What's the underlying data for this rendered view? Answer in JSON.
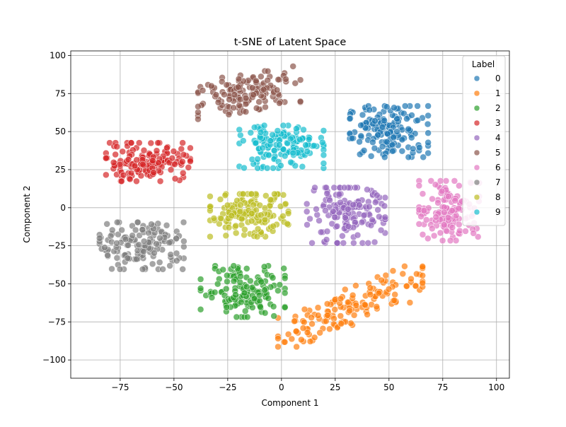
{
  "chart_data": {
    "type": "scatter",
    "title": "t-SNE of Latent Space",
    "xlabel": "Component 1",
    "ylabel": "Component 2",
    "xlim": [
      -98,
      106
    ],
    "ylim": [
      -112,
      103
    ],
    "xticks": [
      -75,
      -50,
      -25,
      0,
      25,
      50,
      75,
      100
    ],
    "yticks": [
      -100,
      -75,
      -50,
      -25,
      0,
      25,
      50,
      75,
      100
    ],
    "xtick_labels": [
      "−75",
      "−50",
      "−25",
      "0",
      "25",
      "50",
      "75",
      "100"
    ],
    "ytick_labels": [
      "−100",
      "−75",
      "−50",
      "−25",
      "0",
      "25",
      "50",
      "75",
      "100"
    ],
    "grid": true,
    "legend": {
      "title": "Label",
      "placement": "top-right"
    },
    "marker_alpha": 0.7,
    "series": [
      {
        "name": "0",
        "color": "#1f77b4",
        "center": [
          50,
          50
        ],
        "spread": [
          13,
          12
        ],
        "n": 160
      },
      {
        "name": "1",
        "color": "#ff7f0e",
        "center": [
          32,
          -65
        ],
        "spread": [
          24,
          9
        ],
        "n": 150,
        "tilt": 0.55
      },
      {
        "name": "2",
        "color": "#2ca02c",
        "center": [
          -18,
          -55
        ],
        "spread": [
          14,
          12
        ],
        "n": 140
      },
      {
        "name": "3",
        "color": "#d62728",
        "center": [
          -62,
          30
        ],
        "spread": [
          14,
          9
        ],
        "n": 150
      },
      {
        "name": "4",
        "color": "#9467bd",
        "center": [
          30,
          -5
        ],
        "spread": [
          13,
          13
        ],
        "n": 150
      },
      {
        "name": "5",
        "color": "#8c564b",
        "center": [
          -15,
          76
        ],
        "spread": [
          17,
          9
        ],
        "n": 140,
        "tilt": 0.25
      },
      {
        "name": "6",
        "color": "#e377c2",
        "center": [
          78,
          -2
        ],
        "spread": [
          10,
          14
        ],
        "n": 140
      },
      {
        "name": "7",
        "color": "#7f7f7f",
        "center": [
          -65,
          -25
        ],
        "spread": [
          14,
          11
        ],
        "n": 150
      },
      {
        "name": "8",
        "color": "#bcbd22",
        "center": [
          -15,
          -5
        ],
        "spread": [
          13,
          10
        ],
        "n": 150
      },
      {
        "name": "9",
        "color": "#17becf",
        "center": [
          0,
          40
        ],
        "spread": [
          14,
          10
        ],
        "n": 150
      }
    ]
  }
}
